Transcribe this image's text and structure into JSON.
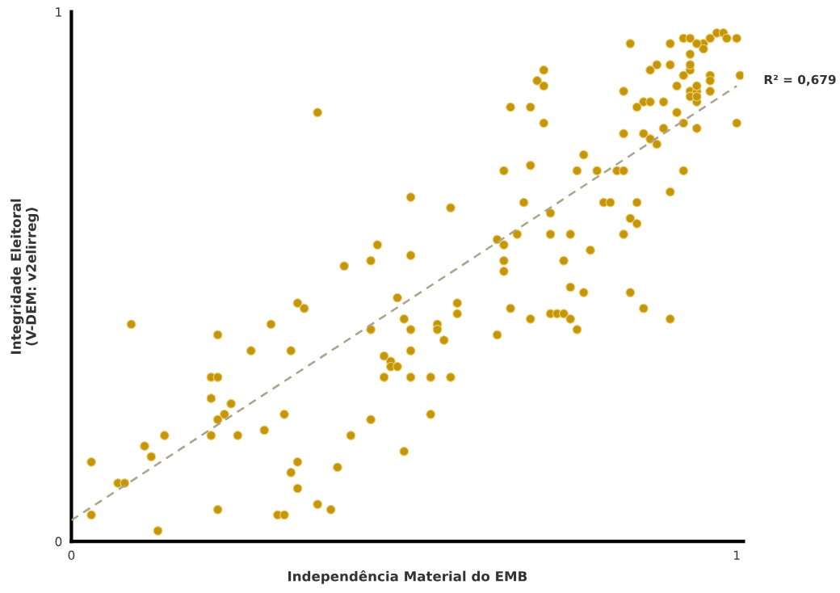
{
  "chart_data": {
    "type": "scatter",
    "xlabel": "Independência Material do EMB",
    "ylabel": "Integridade Eleitoral\n(V-DEM: v2elirreg)",
    "xlim": [
      0,
      1.01
    ],
    "ylim": [
      0,
      1
    ],
    "xticks": [
      0,
      1
    ],
    "yticks": [
      0,
      1
    ],
    "grid": false,
    "legend": false,
    "annotations": [
      "R² = 0,679"
    ],
    "series": [
      {
        "color": "#c4960e",
        "marker": "circle",
        "x": [
          0.03,
          0.03,
          0.07,
          0.08,
          0.09,
          0.11,
          0.12,
          0.13,
          0.14,
          0.21,
          0.21,
          0.22,
          0.21,
          0.22,
          0.22,
          0.23,
          0.22,
          0.24,
          0.25,
          0.27,
          0.29,
          0.3,
          0.31,
          0.32,
          0.32,
          0.33,
          0.33,
          0.34,
          0.34,
          0.34,
          0.35,
          0.37,
          0.37,
          0.39,
          0.4,
          0.41,
          0.42,
          0.45,
          0.45,
          0.45,
          0.46,
          0.47,
          0.47,
          0.48,
          0.48,
          0.49,
          0.49,
          0.5,
          0.5,
          0.51,
          0.51,
          0.51,
          0.51,
          0.51,
          0.54,
          0.54,
          0.55,
          0.55,
          0.56,
          0.57,
          0.57,
          0.58,
          0.58,
          0.64,
          0.64,
          0.65,
          0.65,
          0.65,
          0.65,
          0.66,
          0.66,
          0.67,
          0.68,
          0.69,
          0.69,
          0.69,
          0.7,
          0.71,
          0.71,
          0.71,
          0.72,
          0.72,
          0.72,
          0.73,
          0.74,
          0.74,
          0.75,
          0.75,
          0.75,
          0.76,
          0.76,
          0.77,
          0.77,
          0.78,
          0.79,
          0.8,
          0.81,
          0.82,
          0.83,
          0.83,
          0.83,
          0.83,
          0.84,
          0.84,
          0.84,
          0.85,
          0.85,
          0.85,
          0.86,
          0.86,
          0.86,
          0.87,
          0.87,
          0.87,
          0.88,
          0.88,
          0.89,
          0.89,
          0.9,
          0.9,
          0.9,
          0.9,
          0.91,
          0.91,
          0.92,
          0.92,
          0.92,
          0.92,
          0.93,
          0.93,
          0.93,
          0.94,
          0.93,
          0.93,
          0.94,
          0.94,
          0.94,
          0.94,
          0.95,
          0.96,
          0.96,
          0.96,
          0.96,
          0.97,
          0.98,
          0.985,
          1.0,
          1.0,
          1.005,
          0.93,
          0.94,
          0.95
        ],
        "values": [
          0.05,
          0.15,
          0.11,
          0.11,
          0.41,
          0.18,
          0.16,
          0.02,
          0.2,
          0.2,
          0.31,
          0.31,
          0.27,
          0.06,
          0.39,
          0.24,
          0.23,
          0.26,
          0.2,
          0.36,
          0.21,
          0.41,
          0.05,
          0.05,
          0.24,
          0.13,
          0.36,
          0.1,
          0.15,
          0.45,
          0.44,
          0.07,
          0.81,
          0.06,
          0.14,
          0.52,
          0.2,
          0.53,
          0.23,
          0.4,
          0.56,
          0.35,
          0.31,
          0.34,
          0.33,
          0.33,
          0.46,
          0.17,
          0.42,
          0.54,
          0.4,
          0.31,
          0.36,
          0.65,
          0.24,
          0.31,
          0.41,
          0.4,
          0.38,
          0.31,
          0.63,
          0.45,
          0.43,
          0.57,
          0.39,
          0.53,
          0.51,
          0.56,
          0.7,
          0.82,
          0.44,
          0.58,
          0.64,
          0.71,
          0.82,
          0.42,
          0.87,
          0.89,
          0.86,
          0.79,
          0.43,
          0.62,
          0.58,
          0.43,
          0.43,
          0.53,
          0.58,
          0.48,
          0.42,
          0.4,
          0.7,
          0.73,
          0.47,
          0.55,
          0.7,
          0.64,
          0.64,
          0.7,
          0.7,
          0.77,
          0.85,
          0.58,
          0.61,
          0.94,
          0.47,
          0.82,
          0.6,
          0.64,
          0.77,
          0.44,
          0.83,
          0.83,
          0.89,
          0.76,
          0.75,
          0.9,
          0.78,
          0.83,
          0.94,
          0.66,
          0.42,
          0.9,
          0.81,
          0.86,
          0.79,
          0.88,
          0.95,
          0.7,
          0.85,
          0.92,
          0.89,
          0.85,
          0.84,
          0.9,
          0.78,
          0.83,
          0.84,
          0.86,
          0.94,
          0.88,
          0.85,
          0.87,
          0.95,
          0.96,
          0.96,
          0.95,
          0.95,
          0.79,
          0.88,
          0.95,
          0.94,
          0.93
        ]
      },
      {
        "type": "line",
        "color": "#aaa48c",
        "line_style": "dashed",
        "x": [
          0,
          1
        ],
        "values": [
          0.04,
          0.86
        ]
      }
    ]
  }
}
